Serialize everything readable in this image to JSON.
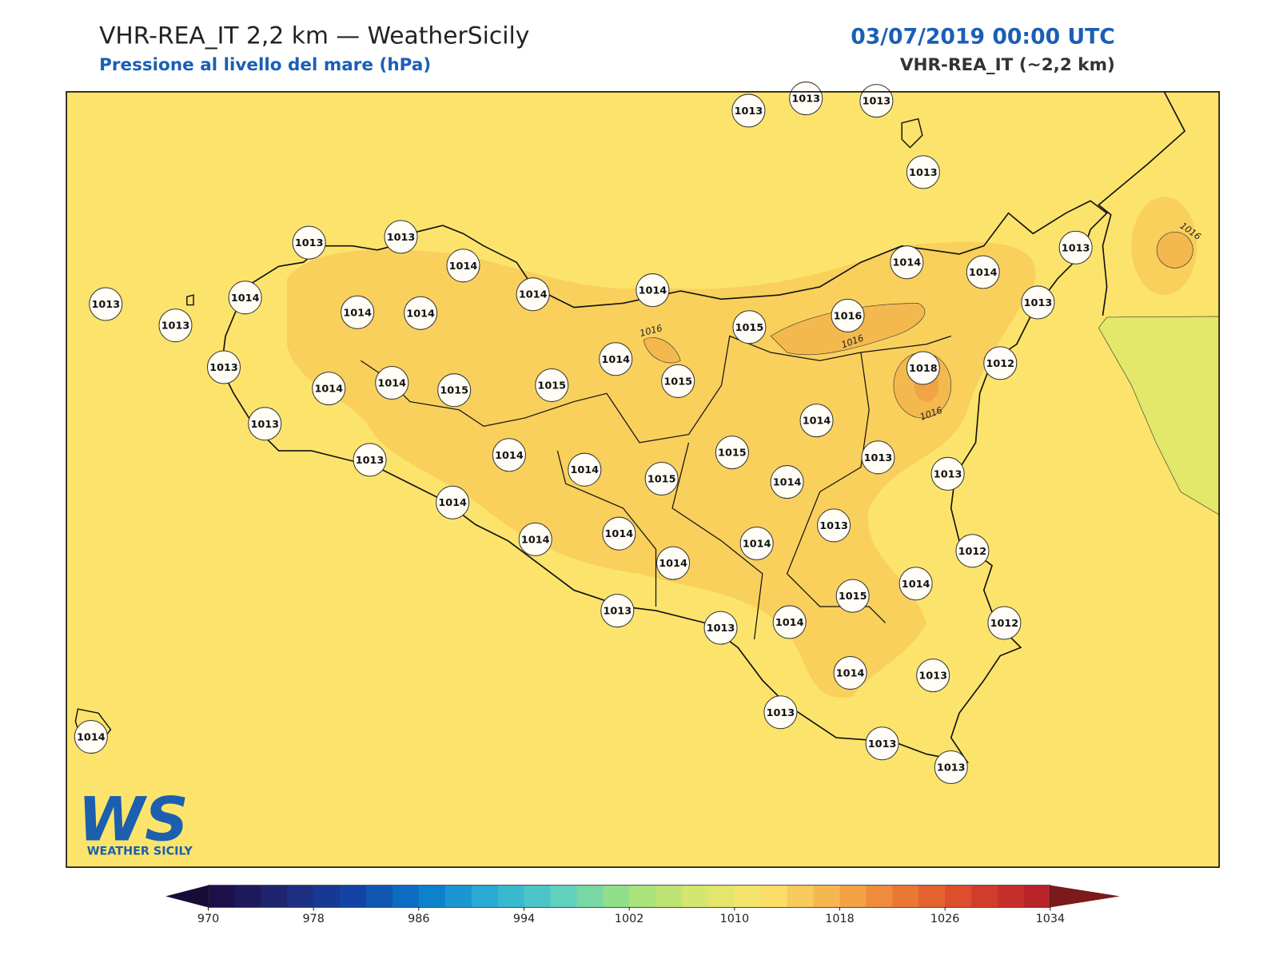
{
  "header": {
    "title": "VHR-REA_IT 2,2 km — WeatherSicily",
    "subtitle": "Pressione al livello del mare (hPa)",
    "datetime": "03/07/2019 00:00 UTC",
    "model": "VHR-REA_IT (~2,2 km)"
  },
  "stations": [
    1013,
    1013,
    1013,
    1013,
    1013,
    1013,
    1014,
    1014,
    1014,
    1014,
    1014,
    1013,
    1013,
    1013,
    1013,
    1014,
    1014,
    1014,
    1015,
    1016,
    1018,
    1012,
    1013,
    1014,
    1014,
    1015,
    1015,
    1014,
    1015,
    1014,
    1013,
    1013,
    1014,
    1014,
    1015,
    1015,
    1013,
    1013,
    1014,
    1014,
    1013,
    1014,
    1014,
    1014,
    1014,
    1012,
    1015,
    1014,
    1013,
    1013,
    1014,
    1012,
    1014,
    1013,
    1013,
    1013,
    1013,
    1014
  ],
  "contour_labels": [
    1016,
    1016,
    1016,
    1016
  ],
  "colorbar": {
    "lim": [
      970,
      1034
    ],
    "step": 2,
    "ticks": [
      970,
      978,
      986,
      994,
      1002,
      1010,
      1018,
      1026,
      1034
    ],
    "colors": [
      "#1d0f4a",
      "#1f2a7a",
      "#1246a8",
      "#0b7ccc",
      "#2cb1d6",
      "#5fd0c0",
      "#9de27e",
      "#d6e66e",
      "#fde36b",
      "#f6b24d",
      "#ec7a35",
      "#d9452b",
      "#b8232a"
    ],
    "under_color": "#170b38",
    "over_color": "#7a1a1a"
  },
  "logo": {
    "mark": "WS",
    "text": "WEATHER SICILY"
  }
}
